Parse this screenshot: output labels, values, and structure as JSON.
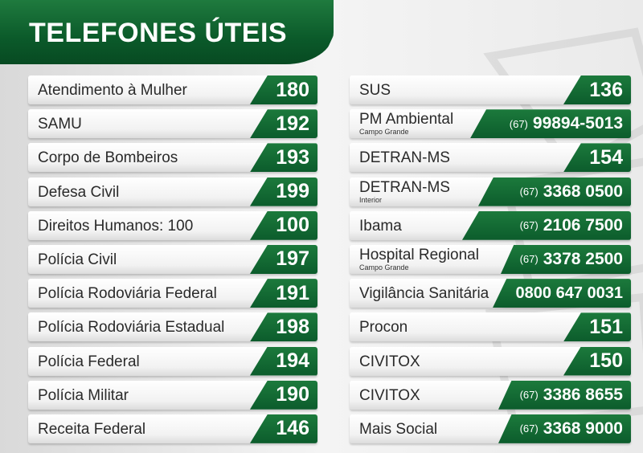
{
  "header": {
    "title": "TELEFONES ÚTEIS"
  },
  "colors": {
    "green_dark": "#0b5a2a",
    "green_light": "#1f7a3e",
    "row_bg": "#f2f2f2"
  },
  "left": [
    {
      "label": "Atendimento à Mulher",
      "number": "180"
    },
    {
      "label": "SAMU",
      "number": "192"
    },
    {
      "label": "Corpo de Bombeiros",
      "number": "193"
    },
    {
      "label": "Defesa Civil",
      "number": "199"
    },
    {
      "label": "Direitos Humanos: 100",
      "number": "100"
    },
    {
      "label": "Polícia Civil",
      "number": "197"
    },
    {
      "label": "Polícia Rodoviária Federal",
      "number": "191"
    },
    {
      "label": "Polícia Rodoviária Estadual",
      "number": "198"
    },
    {
      "label": "Polícia Federal",
      "number": "194"
    },
    {
      "label": "Polícia Militar",
      "number": "190"
    },
    {
      "label": "Receita Federal",
      "number": "146"
    }
  ],
  "right": [
    {
      "label": "SUS",
      "number": "136"
    },
    {
      "label": "PM Ambiental",
      "sub": "Campo Grande",
      "ddd": "(67)",
      "number": "99894-5013"
    },
    {
      "label": "DETRAN-MS",
      "number": "154"
    },
    {
      "label": "DETRAN-MS",
      "sub": "Interior",
      "ddd": "(67)",
      "number": "3368 0500"
    },
    {
      "label": "Ibama",
      "ddd": "(67)",
      "number": "2106 7500"
    },
    {
      "label": "Hospital Regional",
      "sub": "Campo Grande",
      "ddd": "(67)",
      "number": "3378 2500"
    },
    {
      "label": "Vigilância Sanitária",
      "number": "0800 647 0031"
    },
    {
      "label": "Procon",
      "number": "151"
    },
    {
      "label": "CIVITOX",
      "number": "150"
    },
    {
      "label": "CIVITOX",
      "ddd": "(67)",
      "number": "3386 8655"
    },
    {
      "label": "Mais Social",
      "ddd": "(67)",
      "number": "3368 9000"
    }
  ]
}
